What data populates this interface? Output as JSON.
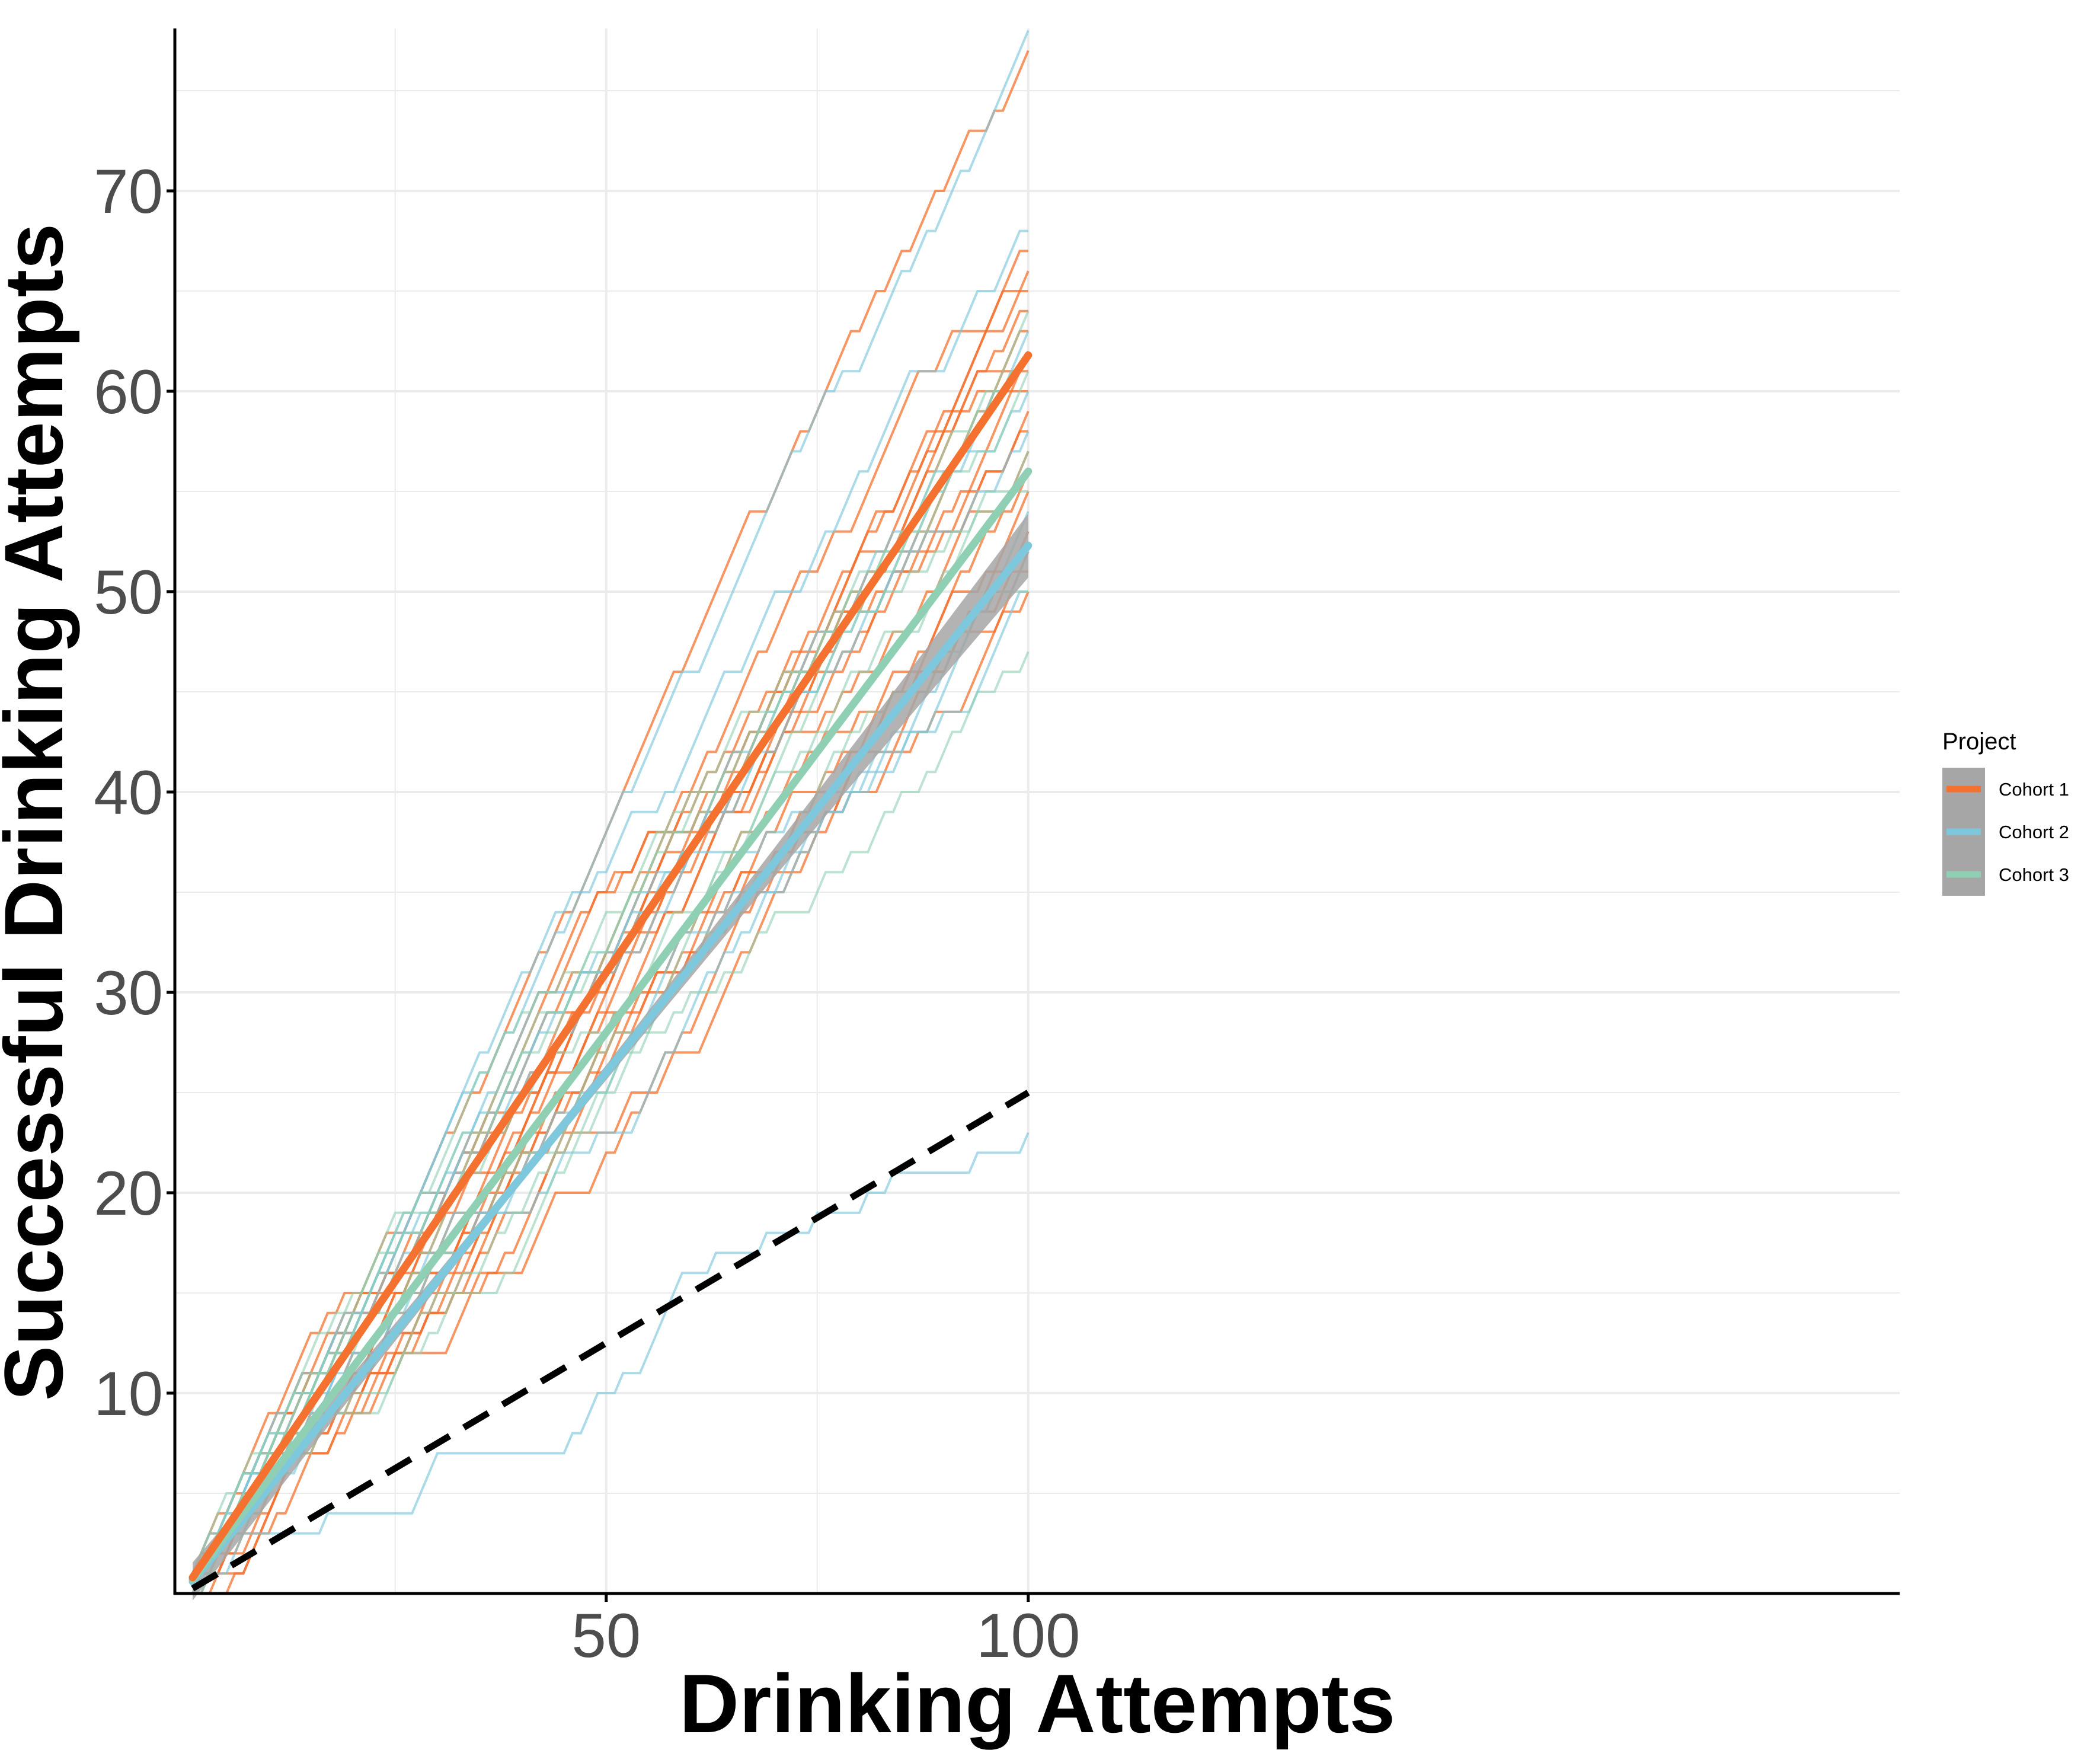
{
  "chart_data": {
    "type": "line",
    "xlabel": "Drinking Attempts",
    "ylabel": "Successful Drinking Attempts",
    "xlim": [
      0,
      101
    ],
    "ylim": [
      0,
      78
    ],
    "x_ticks": [
      50,
      100
    ],
    "y_ticks": [
      10,
      20,
      30,
      40,
      50,
      60,
      70
    ],
    "grid": true,
    "legend": {
      "title": "Project",
      "position": "right",
      "entries": [
        {
          "label": "Cohort 1",
          "color": "#f4712f"
        },
        {
          "label": "Cohort 2",
          "color": "#7ec8dd"
        },
        {
          "label": "Cohort 3",
          "color": "#8fcfb3"
        }
      ]
    },
    "mean_series": [
      {
        "name": "Cohort 1",
        "color": "#f4712f",
        "x": [
          1,
          100
        ],
        "y": [
          0.8,
          61.8
        ]
      },
      {
        "name": "Cohort 2",
        "color": "#7ec8dd",
        "x": [
          1,
          50,
          100
        ],
        "y": [
          0.6,
          26.0,
          52.3
        ]
      },
      {
        "name": "Cohort 3",
        "color": "#8fcfb3",
        "x": [
          1,
          50,
          100
        ],
        "y": [
          0.7,
          28.0,
          56.0
        ]
      }
    ],
    "chance_line": {
      "x": [
        1,
        100
      ],
      "y": [
        0.25,
        25
      ],
      "style": "dashed",
      "color": "#000000"
    },
    "individual_end_values": {
      "Cohort 1": [
        77,
        67,
        66,
        65,
        64,
        63,
        62,
        61,
        60,
        59,
        58,
        57,
        56,
        55,
        53,
        52,
        51,
        50
      ],
      "Cohort 2": [
        78,
        68,
        63,
        60,
        58,
        54,
        52,
        50,
        23
      ],
      "Cohort 3": [
        64,
        62,
        61,
        57,
        55,
        50,
        47
      ]
    }
  },
  "colors": {
    "cohort1": "#f4712f",
    "cohort2": "#7ec8dd",
    "cohort3": "#8fcfb3",
    "ribbon": "#a6a6a6",
    "grid": "#ebebeb",
    "axis": "#000000"
  }
}
